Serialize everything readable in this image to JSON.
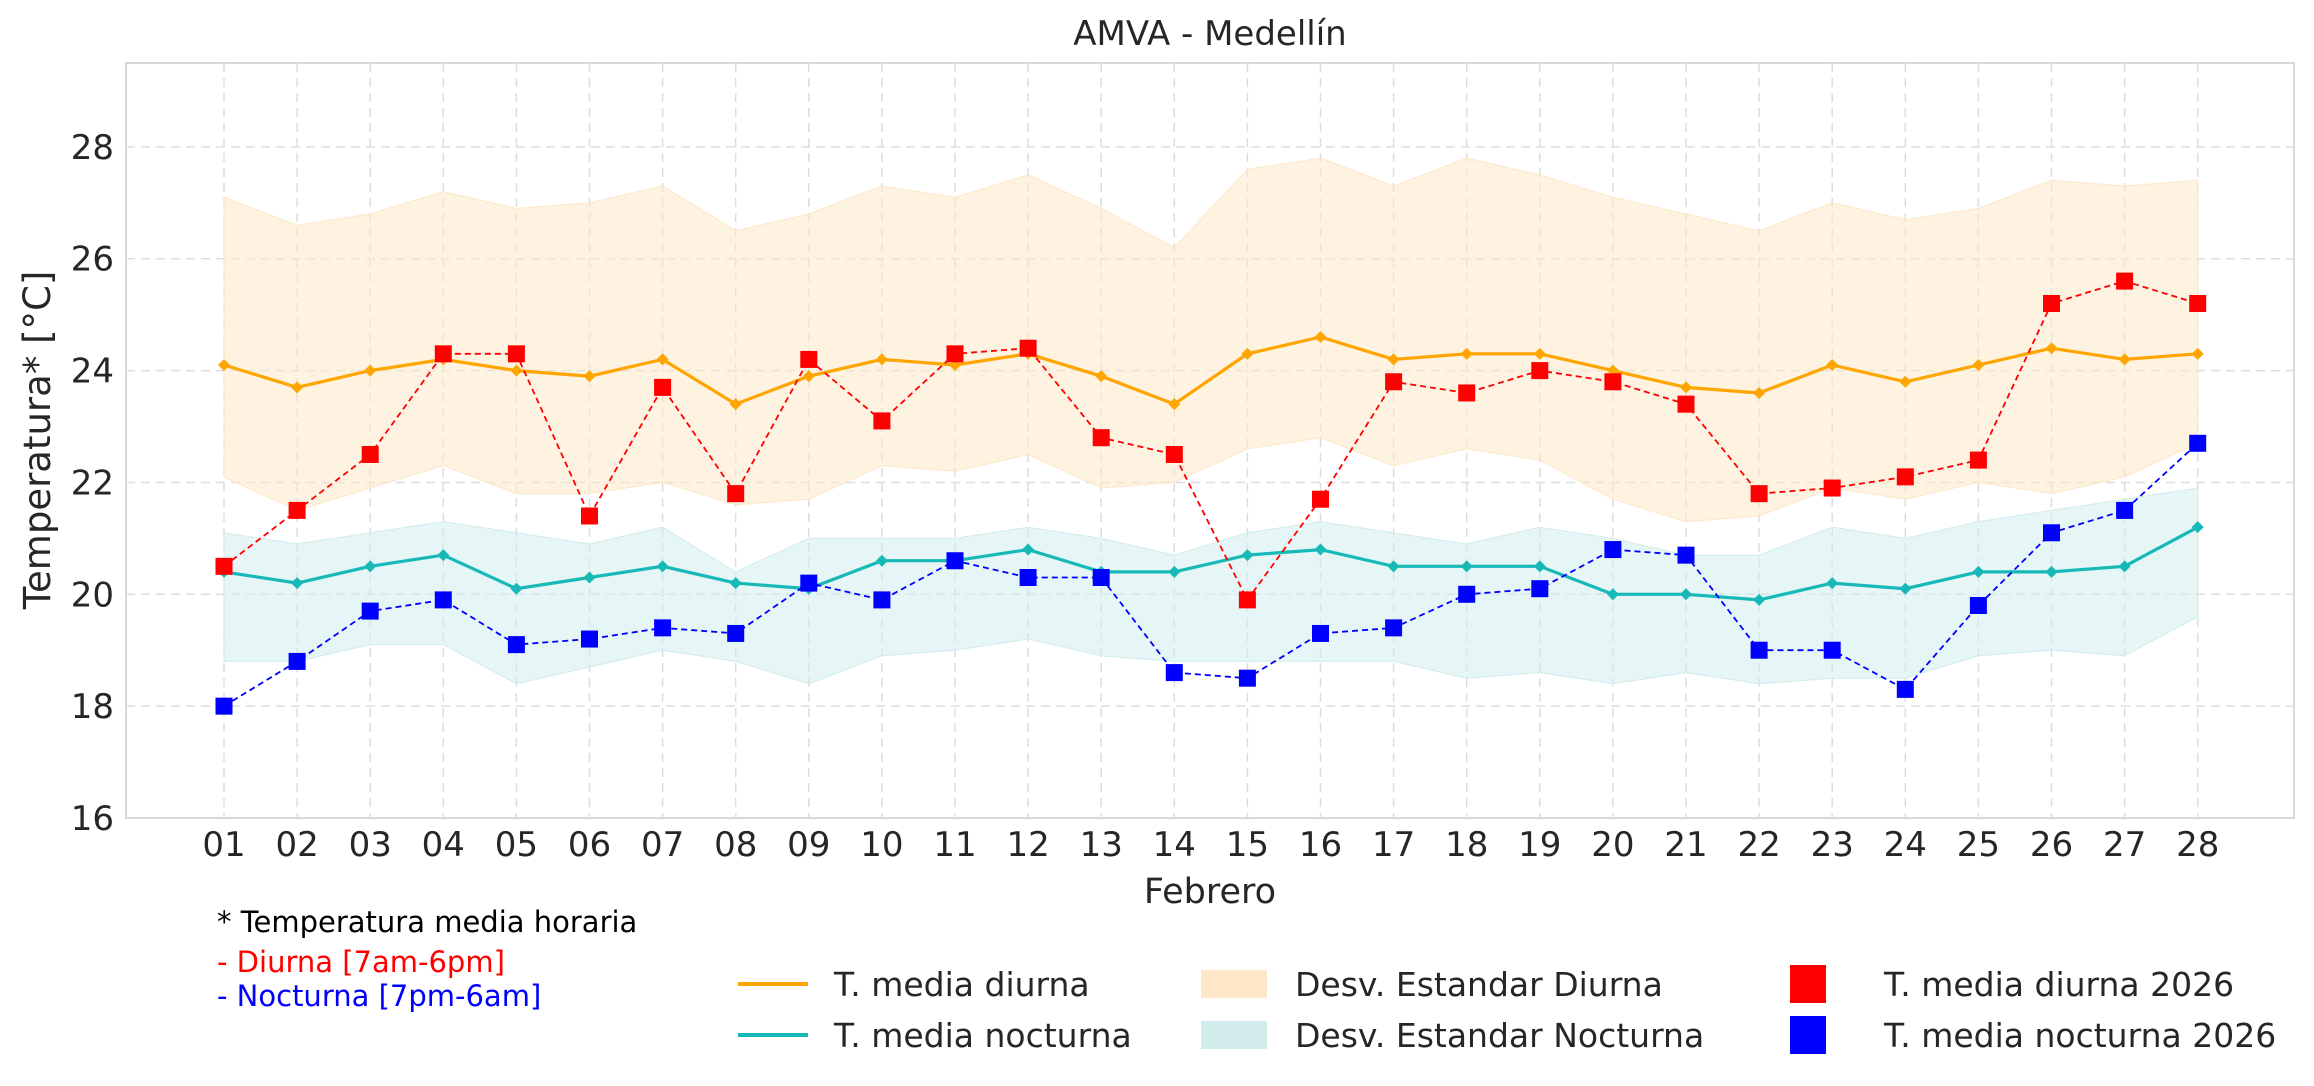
{
  "chart_data": {
    "type": "line",
    "title": "AMVA - Medellín",
    "xlabel": "Febrero",
    "ylabel": "Temperatura* [°C]",
    "ylim": [
      16,
      29.5
    ],
    "yticks": [
      16,
      18,
      20,
      22,
      24,
      26,
      28
    ],
    "grid": true,
    "legend_position": "bottom",
    "categories": [
      "01",
      "02",
      "03",
      "04",
      "05",
      "06",
      "07",
      "08",
      "09",
      "10",
      "11",
      "12",
      "13",
      "14",
      "15",
      "16",
      "17",
      "18",
      "19",
      "20",
      "21",
      "22",
      "23",
      "24",
      "25",
      "26",
      "27",
      "28"
    ],
    "series": [
      {
        "name": "T. media diurna",
        "kind": "line",
        "color": "#ffa500",
        "values": [
          24.1,
          23.7,
          24.0,
          24.2,
          24.0,
          23.9,
          24.2,
          23.4,
          23.9,
          24.2,
          24.1,
          24.3,
          23.9,
          23.4,
          24.3,
          24.6,
          24.2,
          24.3,
          24.3,
          24.0,
          23.7,
          23.6,
          24.1,
          23.8,
          24.1,
          24.4,
          24.2,
          24.3
        ]
      },
      {
        "name": "T. media nocturna",
        "kind": "line",
        "color": "#17b8b8",
        "values": [
          20.4,
          20.2,
          20.5,
          20.7,
          20.1,
          20.3,
          20.5,
          20.2,
          20.1,
          20.6,
          20.6,
          20.8,
          20.4,
          20.4,
          20.7,
          20.8,
          20.5,
          20.5,
          20.5,
          20.0,
          20.0,
          19.9,
          20.2,
          20.1,
          20.4,
          20.4,
          20.5,
          21.2
        ]
      },
      {
        "name": "Desv. Estandar Diurna",
        "kind": "band",
        "color": "#fde7c8",
        "base": "T. media diurna",
        "upper": [
          27.1,
          26.6,
          26.8,
          27.2,
          26.9,
          27.0,
          27.3,
          26.5,
          26.8,
          27.3,
          27.1,
          27.5,
          26.9,
          26.2,
          27.6,
          27.8,
          27.3,
          27.8,
          27.5,
          27.1,
          26.8,
          26.5,
          27.0,
          26.7,
          26.9,
          27.4,
          27.3,
          27.4
        ],
        "lower": [
          22.1,
          21.5,
          21.9,
          22.3,
          21.8,
          21.8,
          22.0,
          21.6,
          21.7,
          22.3,
          22.2,
          22.5,
          21.9,
          22.0,
          22.6,
          22.8,
          22.3,
          22.6,
          22.4,
          21.7,
          21.3,
          21.4,
          21.9,
          21.7,
          22.0,
          21.8,
          22.1,
          22.7
        ]
      },
      {
        "name": "Desv. Estandar Nocturna",
        "kind": "band",
        "color": "#d2ecec",
        "base": "T. media nocturna",
        "upper": [
          21.1,
          20.9,
          21.1,
          21.3,
          21.1,
          20.9,
          21.2,
          20.4,
          21.0,
          21.0,
          21.0,
          21.2,
          21.0,
          20.7,
          21.1,
          21.3,
          21.1,
          20.9,
          21.2,
          21.0,
          20.7,
          20.7,
          21.2,
          21.0,
          21.3,
          21.5,
          21.7,
          21.9
        ],
        "lower": [
          18.8,
          18.8,
          19.1,
          19.1,
          18.4,
          18.7,
          19.0,
          18.8,
          18.4,
          18.9,
          19.0,
          19.2,
          18.9,
          18.8,
          18.8,
          18.8,
          18.8,
          18.5,
          18.6,
          18.4,
          18.6,
          18.4,
          18.5,
          18.5,
          18.9,
          19.0,
          18.9,
          19.6
        ]
      },
      {
        "name": "T. media diurna 2026",
        "kind": "markers",
        "color": "#ff0000",
        "values": [
          20.5,
          21.5,
          22.5,
          24.3,
          24.3,
          21.4,
          23.7,
          21.8,
          24.2,
          23.1,
          24.3,
          24.4,
          22.8,
          22.5,
          19.9,
          21.7,
          23.8,
          23.6,
          24.0,
          23.8,
          23.4,
          21.8,
          21.9,
          22.1,
          22.4,
          25.2,
          25.6,
          25.2
        ]
      },
      {
        "name": "T. media nocturna 2026",
        "kind": "markers",
        "color": "#0000ff",
        "values": [
          18.0,
          18.8,
          19.7,
          19.9,
          19.1,
          19.2,
          19.4,
          19.3,
          20.2,
          19.9,
          20.6,
          20.3,
          20.3,
          18.6,
          18.5,
          19.3,
          19.4,
          20.0,
          20.1,
          20.8,
          20.7,
          19.0,
          19.0,
          18.3,
          19.8,
          21.1,
          21.5,
          22.7
        ]
      }
    ]
  },
  "notes": {
    "footnote": "* Temperatura media horaria",
    "day_note": "- Diurna [7am-6pm]",
    "night_note": "- Nocturna [7pm-6am]"
  },
  "legend": [
    {
      "label": "T. media diurna",
      "swatch": "line",
      "color": "#ffa500"
    },
    {
      "label": "T. media nocturna",
      "swatch": "line",
      "color": "#17b8b8"
    },
    {
      "label": "Desv. Estandar Diurna",
      "swatch": "band",
      "color": "#fde7c8"
    },
    {
      "label": "Desv. Estandar Nocturna",
      "swatch": "band",
      "color": "#d2ecec"
    },
    {
      "label": "T. media diurna 2026",
      "swatch": "square",
      "color": "#ff0000"
    },
    {
      "label": "T. media nocturna 2026",
      "swatch": "square",
      "color": "#0000ff"
    }
  ]
}
